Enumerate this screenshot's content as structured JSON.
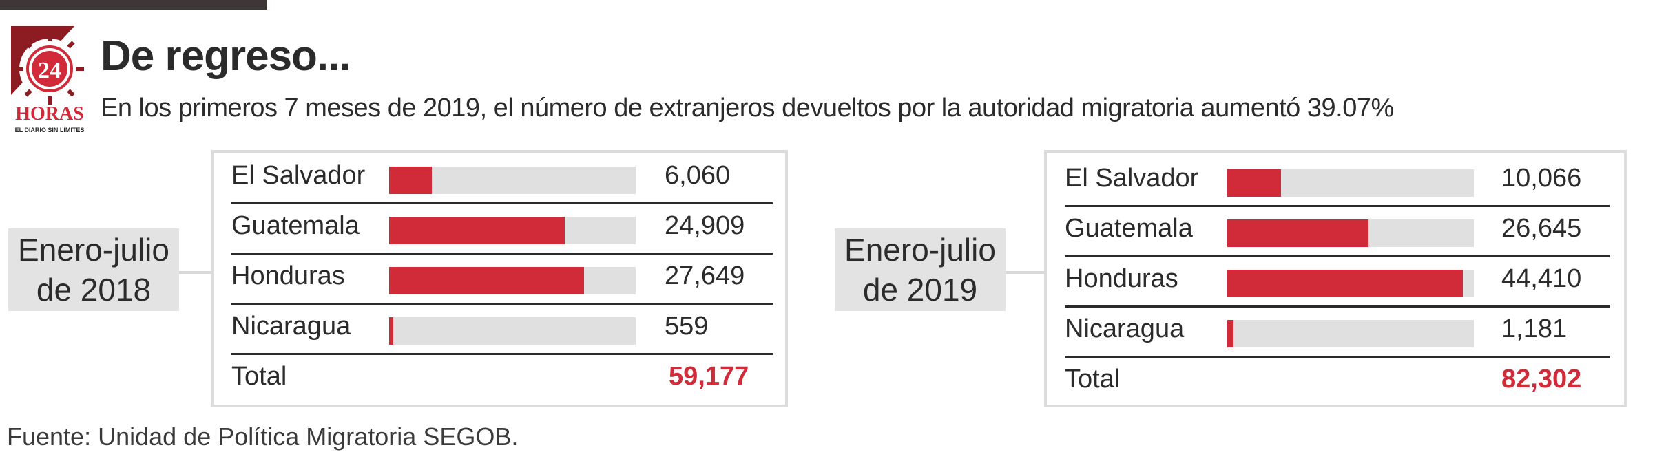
{
  "header": {
    "title": "De regreso...",
    "subtitle": "En los primeros 7 meses de 2019, el número de extranjeros devueltos por la autoridad migratoria aumentó 39.07%"
  },
  "logo": {
    "number": "24",
    "name": "HORAS",
    "tagline": "EL DIARIO SIN LÍMITES"
  },
  "colors": {
    "accent": "#d12a38",
    "track": "#e0e0e0",
    "label_bg": "#e3e3e3"
  },
  "chart_data": [
    {
      "type": "bar",
      "period": [
        "Enero-julio",
        "de 2018"
      ],
      "categories": [
        "El Salvador",
        "Guatemala",
        "Honduras",
        "Nicaragua"
      ],
      "values": [
        6060,
        24909,
        27649,
        559
      ],
      "value_labels": [
        "6,060",
        "24,909",
        "27,649",
        "559"
      ],
      "scale_max": 35000,
      "total_label": "Total",
      "total": "59,177"
    },
    {
      "type": "bar",
      "period": [
        "Enero-julio",
        "de 2019"
      ],
      "categories": [
        "El Salvador",
        "Guatemala",
        "Honduras",
        "Nicaragua"
      ],
      "values": [
        10066,
        26645,
        44410,
        1181
      ],
      "value_labels": [
        "10,066",
        "26,645",
        "44,410",
        "1,181"
      ],
      "scale_max": 46500,
      "total_label": "Total",
      "total": "82,302"
    }
  ],
  "footer": {
    "source": "Fuente: Unidad de Política Migratoria SEGOB."
  }
}
